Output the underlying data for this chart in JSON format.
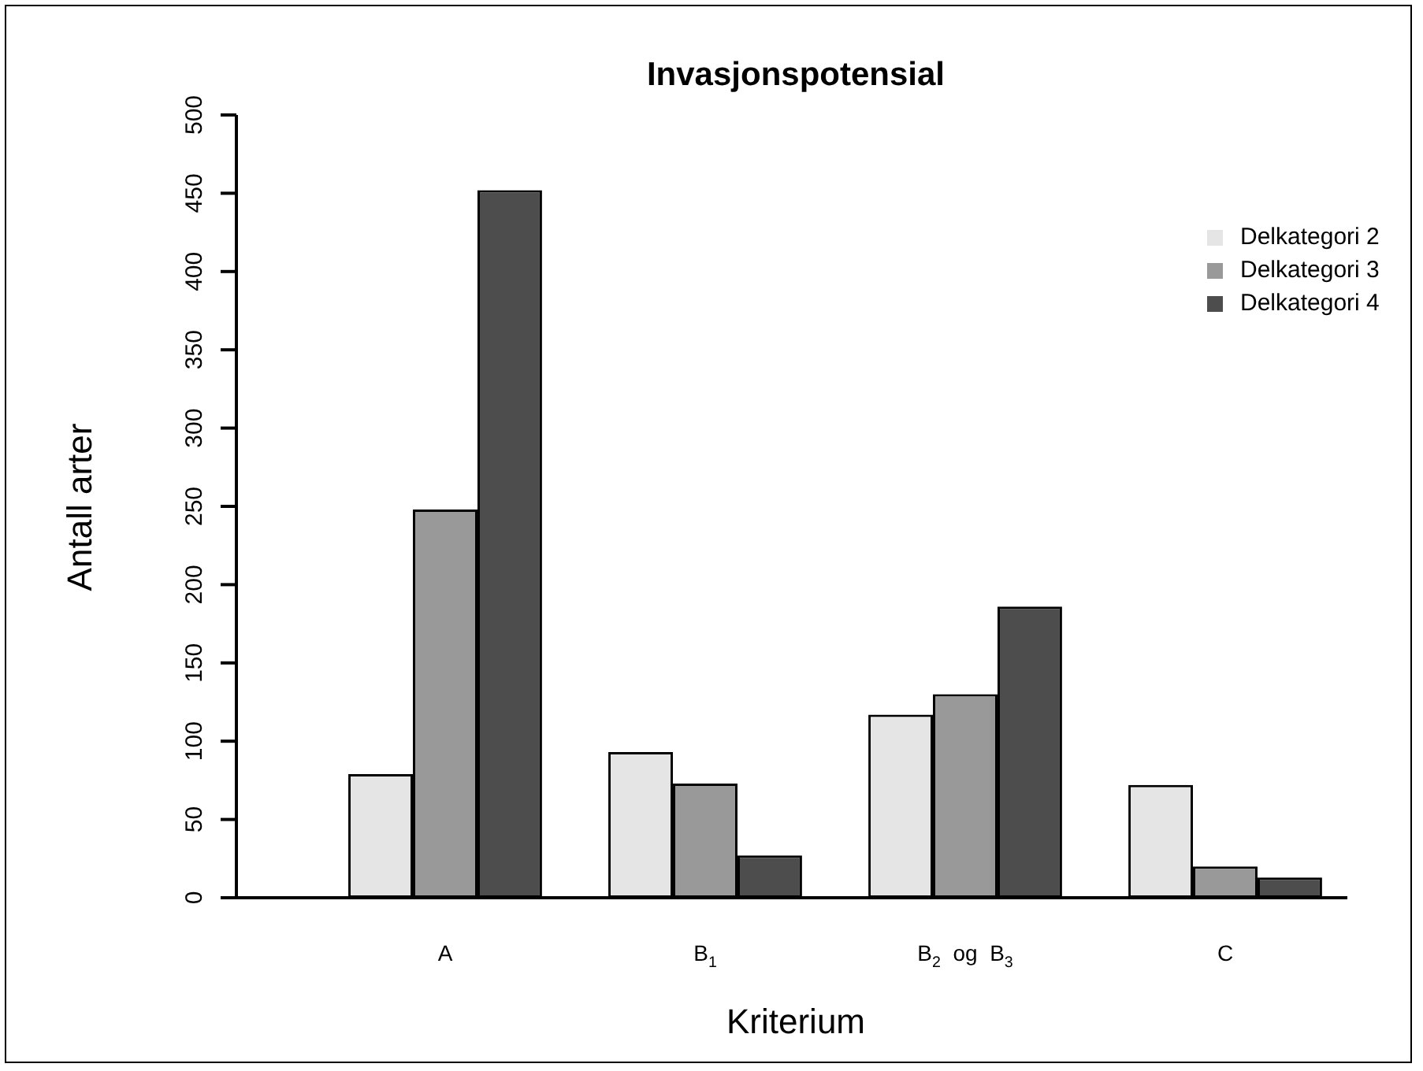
{
  "chart_data": {
    "type": "bar",
    "title": "Invasjonspotensial",
    "xlabel": "Kriterium",
    "ylabel": "Antall arter",
    "categories": [
      "A",
      "B$_{1}$",
      "B$_{2}$  og  B$_{3}$",
      "C"
    ],
    "series": [
      {
        "name": "Delkategori 2",
        "color": "#e5e5e5",
        "values": [
          79,
          93,
          117,
          72
        ]
      },
      {
        "name": "Delkategori 3",
        "color": "#999999",
        "values": [
          248,
          73,
          130,
          20
        ]
      },
      {
        "name": "Delkategori 4",
        "color": "#4d4d4d",
        "values": [
          452,
          27,
          186,
          13
        ]
      }
    ],
    "ylim": [
      0,
      500
    ],
    "yticks": [
      0,
      50,
      100,
      150,
      200,
      250,
      300,
      350,
      400,
      450,
      500
    ],
    "legend": "top right"
  }
}
